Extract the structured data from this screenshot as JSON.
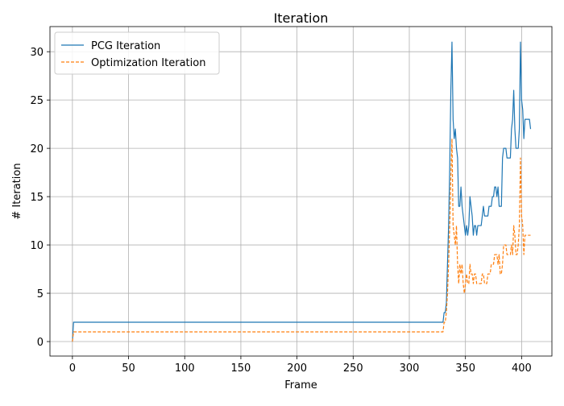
{
  "chart_data": {
    "type": "line",
    "title": "Iteration",
    "xlabel": "Frame",
    "ylabel": "# Iteration",
    "xlim": [
      -20,
      427
    ],
    "ylim": [
      -1.5,
      32.6
    ],
    "xticks": [
      0,
      50,
      100,
      150,
      200,
      250,
      300,
      350,
      400
    ],
    "yticks": [
      0,
      5,
      10,
      15,
      20,
      25,
      30
    ],
    "grid": true,
    "legend_position": "top-left",
    "series": [
      {
        "name": "PCG Iteration",
        "color": "#1f77b4",
        "style": "solid",
        "points": [
          [
            0,
            0
          ],
          [
            1,
            2
          ],
          [
            330,
            2
          ],
          [
            331,
            3
          ],
          [
            332,
            3
          ],
          [
            333,
            4
          ],
          [
            334,
            8
          ],
          [
            335,
            12
          ],
          [
            336,
            18
          ],
          [
            337,
            26
          ],
          [
            338,
            31
          ],
          [
            339,
            23
          ],
          [
            340,
            21
          ],
          [
            341,
            22
          ],
          [
            342,
            20
          ],
          [
            343,
            19
          ],
          [
            344,
            14
          ],
          [
            345,
            14
          ],
          [
            346,
            16
          ],
          [
            347,
            14
          ],
          [
            348,
            13
          ],
          [
            349,
            12
          ],
          [
            350,
            11
          ],
          [
            351,
            12
          ],
          [
            352,
            11
          ],
          [
            353,
            12
          ],
          [
            354,
            15
          ],
          [
            355,
            14
          ],
          [
            356,
            13
          ],
          [
            357,
            11
          ],
          [
            358,
            12
          ],
          [
            359,
            12
          ],
          [
            360,
            11
          ],
          [
            361,
            12
          ],
          [
            362,
            12
          ],
          [
            363,
            12
          ],
          [
            364,
            12
          ],
          [
            365,
            13
          ],
          [
            366,
            14
          ],
          [
            367,
            13
          ],
          [
            368,
            13
          ],
          [
            369,
            13
          ],
          [
            370,
            13
          ],
          [
            371,
            14
          ],
          [
            372,
            14
          ],
          [
            373,
            14
          ],
          [
            374,
            15
          ],
          [
            375,
            15
          ],
          [
            376,
            16
          ],
          [
            377,
            16
          ],
          [
            378,
            15
          ],
          [
            379,
            16
          ],
          [
            380,
            14
          ],
          [
            381,
            14
          ],
          [
            382,
            14
          ],
          [
            383,
            19
          ],
          [
            384,
            20
          ],
          [
            385,
            20
          ],
          [
            386,
            20
          ],
          [
            387,
            19
          ],
          [
            388,
            19
          ],
          [
            389,
            19
          ],
          [
            390,
            19
          ],
          [
            391,
            22
          ],
          [
            392,
            23
          ],
          [
            393,
            26
          ],
          [
            394,
            22
          ],
          [
            395,
            20
          ],
          [
            396,
            20
          ],
          [
            397,
            20
          ],
          [
            398,
            22
          ],
          [
            399,
            31
          ],
          [
            400,
            25
          ],
          [
            401,
            24
          ],
          [
            402,
            21
          ],
          [
            403,
            23
          ],
          [
            404,
            23
          ],
          [
            405,
            23
          ],
          [
            406,
            23
          ],
          [
            407,
            23
          ],
          [
            408,
            22
          ]
        ]
      },
      {
        "name": "Optimization Iteration",
        "color": "#ff7f0e",
        "style": "dashed",
        "points": [
          [
            0,
            0
          ],
          [
            1,
            1
          ],
          [
            330,
            1
          ],
          [
            331,
            2
          ],
          [
            332,
            2
          ],
          [
            333,
            3
          ],
          [
            334,
            5
          ],
          [
            335,
            8
          ],
          [
            336,
            12
          ],
          [
            337,
            17
          ],
          [
            338,
            21
          ],
          [
            339,
            12
          ],
          [
            340,
            11
          ],
          [
            341,
            10
          ],
          [
            342,
            12
          ],
          [
            343,
            8
          ],
          [
            344,
            6
          ],
          [
            345,
            8
          ],
          [
            346,
            7
          ],
          [
            347,
            8
          ],
          [
            348,
            6
          ],
          [
            349,
            5
          ],
          [
            350,
            6
          ],
          [
            351,
            7
          ],
          [
            352,
            6
          ],
          [
            353,
            6
          ],
          [
            354,
            8
          ],
          [
            355,
            7
          ],
          [
            356,
            7
          ],
          [
            357,
            6
          ],
          [
            358,
            7
          ],
          [
            359,
            7
          ],
          [
            360,
            6
          ],
          [
            361,
            6
          ],
          [
            362,
            6
          ],
          [
            363,
            6
          ],
          [
            364,
            6
          ],
          [
            365,
            7
          ],
          [
            366,
            7
          ],
          [
            367,
            6
          ],
          [
            368,
            6
          ],
          [
            369,
            6
          ],
          [
            370,
            7
          ],
          [
            371,
            7
          ],
          [
            372,
            7
          ],
          [
            373,
            8
          ],
          [
            374,
            8
          ],
          [
            375,
            8
          ],
          [
            376,
            9
          ],
          [
            377,
            9
          ],
          [
            378,
            9
          ],
          [
            379,
            8
          ],
          [
            380,
            9
          ],
          [
            381,
            7
          ],
          [
            382,
            7
          ],
          [
            383,
            8
          ],
          [
            384,
            10
          ],
          [
            385,
            10
          ],
          [
            386,
            10
          ],
          [
            387,
            9
          ],
          [
            388,
            9
          ],
          [
            389,
            9
          ],
          [
            390,
            9
          ],
          [
            391,
            10
          ],
          [
            392,
            9
          ],
          [
            393,
            12
          ],
          [
            394,
            11
          ],
          [
            395,
            9
          ],
          [
            396,
            9
          ],
          [
            397,
            10
          ],
          [
            398,
            12
          ],
          [
            399,
            19
          ],
          [
            400,
            13
          ],
          [
            401,
            12
          ],
          [
            402,
            9
          ],
          [
            403,
            11
          ],
          [
            404,
            11
          ],
          [
            405,
            11
          ],
          [
            406,
            11
          ],
          [
            407,
            11
          ],
          [
            408,
            11
          ]
        ]
      }
    ]
  }
}
